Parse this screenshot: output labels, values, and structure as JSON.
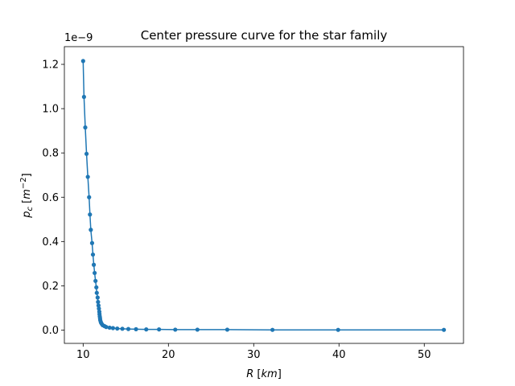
{
  "chart_data": {
    "type": "line",
    "title": "Center pressure curve for the star family",
    "xlabel": "R [km]",
    "ylabel": "p_c [m^-2]",
    "offset_text": "1e−9",
    "xlim": [
      7.8,
      54.6
    ],
    "ylim": [
      -0.06,
      1.28
    ],
    "xticks": [
      10,
      20,
      30,
      40,
      50
    ],
    "xtick_labels": [
      "10",
      "20",
      "30",
      "40",
      "50"
    ],
    "yticks": [
      0.0,
      0.2,
      0.4,
      0.6,
      0.8,
      1.0,
      1.2
    ],
    "ytick_labels": [
      "0.0",
      "0.2",
      "0.4",
      "0.6",
      "0.8",
      "1.0",
      "1.2"
    ],
    "grid": false,
    "legend": "none",
    "color": "#1f77b4",
    "series": [
      {
        "x": [
          10.0,
          10.1,
          10.25,
          10.4,
          10.55,
          10.7,
          10.8,
          10.9,
          11.05,
          11.15,
          11.25,
          11.35,
          11.45,
          11.55,
          11.6,
          11.7,
          11.75,
          11.8,
          11.85,
          11.9,
          11.92,
          11.95,
          11.98,
          12.0,
          12.05,
          12.1,
          12.2,
          12.3,
          12.5,
          12.7,
          13.1,
          13.5,
          14.0,
          14.6,
          15.3,
          16.2,
          17.4,
          18.9,
          20.8,
          23.4,
          26.9,
          32.2,
          39.9,
          52.3
        ],
        "y": [
          1.215,
          1.053,
          0.915,
          0.796,
          0.692,
          0.6,
          0.522,
          0.453,
          0.393,
          0.341,
          0.295,
          0.258,
          0.222,
          0.193,
          0.168,
          0.147,
          0.127,
          0.111,
          0.097,
          0.083,
          0.072,
          0.062,
          0.054,
          0.046,
          0.039,
          0.033,
          0.027,
          0.022,
          0.018,
          0.014,
          0.011,
          0.009,
          0.007,
          0.006,
          0.005,
          0.004,
          0.003,
          0.003,
          0.002,
          0.002,
          0.002,
          0.001,
          0.001,
          0.001
        ]
      }
    ]
  }
}
